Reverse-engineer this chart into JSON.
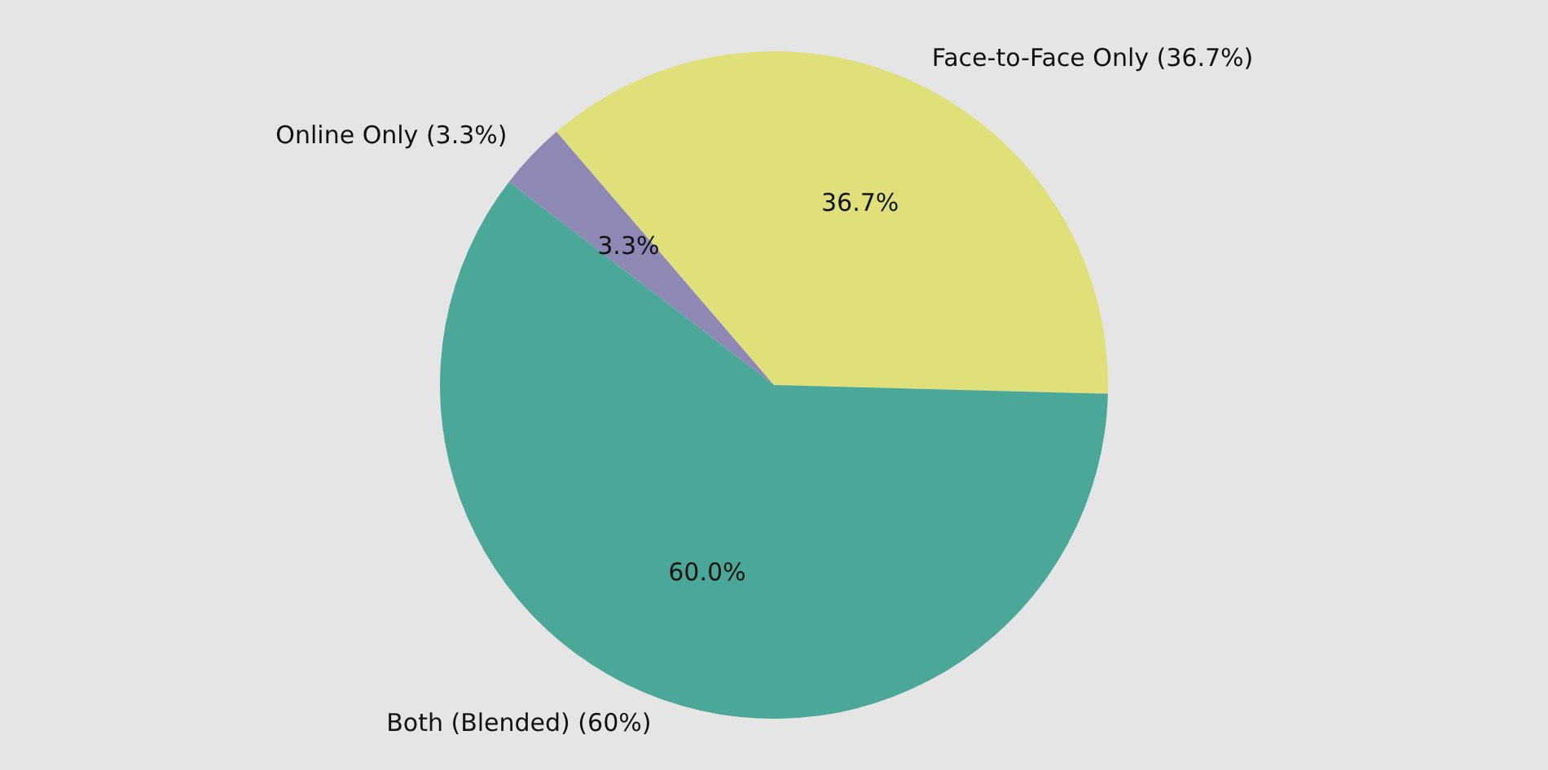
{
  "chart_data": {
    "type": "pie",
    "categories": [
      "Online Only (3.3%)",
      "Face-to-Face Only (36.7%)",
      "Both (Blended) (60%)"
    ],
    "values": [
      3.3,
      36.7,
      60.0
    ],
    "colors": [
      "#8e88b5",
      "#e0e07a",
      "#4ba898"
    ],
    "value_labels": [
      "3.3%",
      "36.7%",
      "60.0%"
    ],
    "legend": false
  }
}
